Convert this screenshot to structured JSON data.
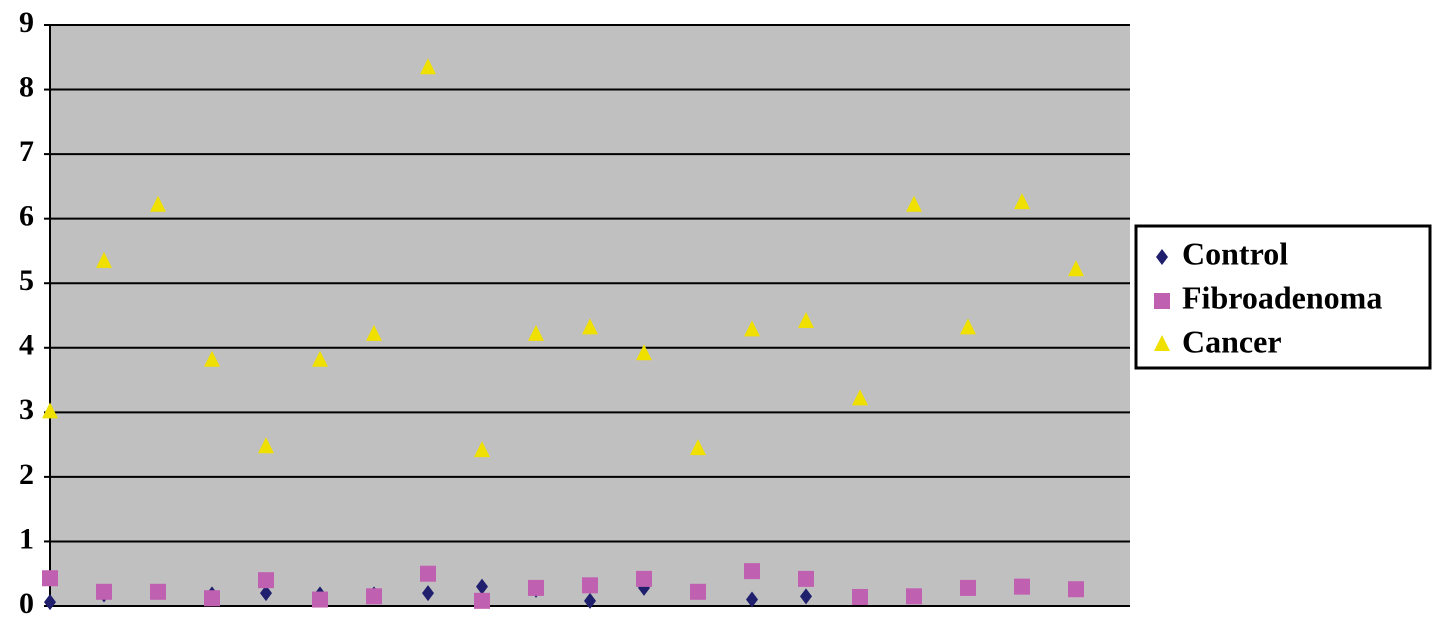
{
  "chart_data": {
    "type": "scatter",
    "x": [
      1,
      2,
      3,
      4,
      5,
      6,
      7,
      8,
      9,
      10,
      11,
      12,
      13,
      14,
      15,
      16,
      17,
      18,
      19,
      20
    ],
    "xlim": [
      1,
      21
    ],
    "ylim": [
      0,
      9
    ],
    "yticks": [
      0,
      1,
      2,
      3,
      4,
      5,
      6,
      7,
      8,
      9
    ],
    "grid": true,
    "legend": "right",
    "series": [
      {
        "name": "Control",
        "color": "#1f1f6e",
        "marker": "diamond",
        "values": [
          0.06,
          0.18,
          null,
          0.18,
          0.2,
          0.18,
          0.18,
          0.2,
          0.3,
          0.25,
          0.08,
          0.28,
          null,
          0.1,
          0.15,
          null,
          null,
          null,
          null,
          null
        ]
      },
      {
        "name": "Fibroadenoma",
        "color": "#c060b0",
        "marker": "square",
        "values": [
          0.43,
          0.22,
          0.22,
          0.12,
          0.4,
          0.1,
          0.15,
          0.5,
          0.08,
          0.28,
          0.32,
          0.42,
          0.22,
          0.54,
          0.42,
          0.14,
          0.15,
          0.28,
          0.3,
          0.26
        ]
      },
      {
        "name": "Cancer",
        "color": "#f0e000",
        "marker": "triangle",
        "values": [
          3.0,
          5.33,
          6.2,
          3.8,
          2.46,
          3.8,
          4.2,
          8.33,
          2.4,
          4.2,
          4.3,
          3.9,
          2.43,
          4.27,
          4.4,
          3.2,
          6.2,
          4.3,
          6.24,
          5.2
        ]
      }
    ]
  }
}
